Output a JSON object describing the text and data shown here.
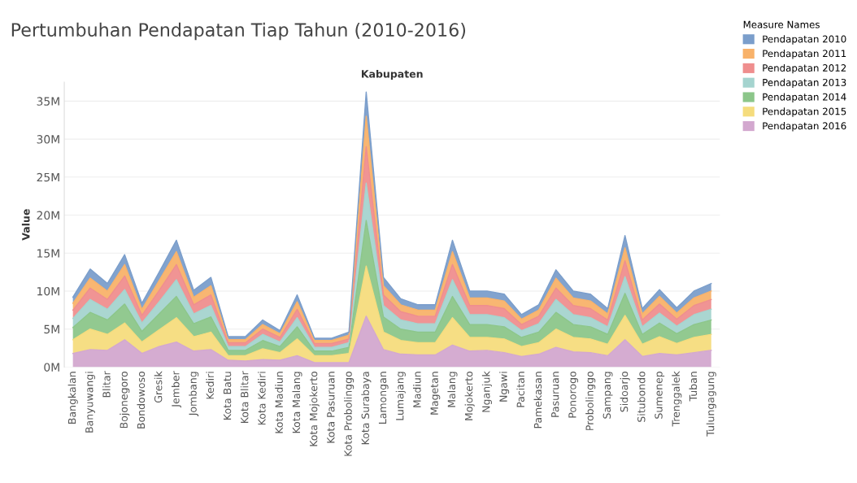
{
  "chart_data": {
    "type": "area",
    "stacked": true,
    "title": "Pertumbuhan Pendapatan Tiap Tahun (2010-2016)",
    "xlabel": "Kabupaten",
    "ylabel": "Value",
    "legend_title": "Measure Names",
    "categories": [
      "Bangkalan",
      "Banyuwangi",
      "Blitar",
      "Bojonegoro",
      "Bondowoso",
      "Gresik",
      "Jember",
      "Jombang",
      "Kediri",
      "Kota Batu",
      "Kota Blitar",
      "Kota Kediri",
      "Kota Madiun",
      "Kota Malang",
      "Kota Mojokerto",
      "Kota Pasuruan",
      "Kota Probolinggo",
      "Kota Surabaya",
      "Lamongan",
      "Lumajang",
      "Madiun",
      "Magetan",
      "Malang",
      "Mojokerto",
      "Nganjuk",
      "Ngawi",
      "Pacitan",
      "Pamekasan",
      "Pasuruan",
      "Ponorogo",
      "Probolinggo",
      "Sampang",
      "Sidoarjo",
      "Situbondo",
      "Sumenep",
      "Trenggalek",
      "Tuban",
      "Tulungagung"
    ],
    "series": [
      {
        "name": "Pendapatan 2016",
        "color": "#d3a8cf",
        "values": [
          1.8,
          2.3,
          2.2,
          3.6,
          1.8,
          2.7,
          3.3,
          2.1,
          2.3,
          0.9,
          0.8,
          1.0,
          0.9,
          1.5,
          0.6,
          0.6,
          0.6,
          6.7,
          2.3,
          1.7,
          1.6,
          1.6,
          2.9,
          2.1,
          2.2,
          1.9,
          1.4,
          1.7,
          2.6,
          2.0,
          1.9,
          1.5,
          3.6,
          1.4,
          1.8,
          1.6,
          1.9,
          2.2
        ]
      },
      {
        "name": "Pendapatan 2015",
        "color": "#f5dc7d",
        "values": [
          1.8,
          2.7,
          2.1,
          2.2,
          1.5,
          2.2,
          3.2,
          1.9,
          2.3,
          0.6,
          0.7,
          1.4,
          1.0,
          2.2,
          0.9,
          0.9,
          1.2,
          6.6,
          2.3,
          1.8,
          1.6,
          1.6,
          3.6,
          1.8,
          1.7,
          1.8,
          1.3,
          1.5,
          2.4,
          1.9,
          1.8,
          1.5,
          3.2,
          1.6,
          2.2,
          1.5,
          2.0,
          2.1
        ]
      },
      {
        "name": "Pendapatan 2014",
        "color": "#8cc68a",
        "values": [
          1.6,
          2.2,
          1.9,
          2.5,
          1.4,
          2.1,
          2.8,
          1.7,
          2.0,
          0.7,
          0.7,
          1.1,
          0.8,
          1.6,
          0.6,
          0.6,
          0.8,
          6.0,
          2.0,
          1.5,
          1.4,
          1.4,
          2.8,
          1.7,
          1.7,
          1.6,
          1.2,
          1.4,
          2.2,
          1.7,
          1.6,
          1.3,
          2.9,
          1.3,
          1.8,
          1.3,
          1.7,
          1.9
        ]
      },
      {
        "name": "Pendapatan 2013",
        "color": "#a5d4cf",
        "values": [
          1.2,
          1.7,
          1.4,
          1.9,
          1.1,
          1.6,
          2.2,
          1.3,
          1.5,
          0.5,
          0.5,
          0.8,
          0.6,
          1.2,
          0.5,
          0.5,
          0.6,
          4.9,
          1.5,
          1.2,
          1.1,
          1.1,
          2.2,
          1.3,
          1.3,
          1.2,
          0.9,
          1.1,
          1.7,
          1.3,
          1.2,
          1.0,
          2.2,
          1.0,
          1.3,
          1.0,
          1.3,
          1.4
        ]
      },
      {
        "name": "Pendapatan 2012",
        "color": "#ef8e8e",
        "values": [
          1.1,
          1.5,
          1.3,
          1.8,
          1.0,
          1.5,
          2.0,
          1.2,
          1.4,
          0.5,
          0.5,
          0.7,
          0.6,
          1.1,
          0.5,
          0.5,
          0.5,
          4.8,
          1.4,
          1.1,
          1.0,
          1.0,
          2.0,
          1.2,
          1.2,
          1.2,
          0.8,
          1.0,
          1.5,
          1.2,
          1.2,
          0.9,
          2.1,
          0.9,
          1.2,
          0.9,
          1.2,
          1.3
        ]
      },
      {
        "name": "Pendapatan 2011",
        "color": "#f8b26a",
        "values": [
          0.9,
          1.3,
          1.1,
          1.5,
          0.8,
          1.3,
          1.7,
          1.0,
          1.2,
          0.4,
          0.4,
          0.6,
          0.5,
          1.0,
          0.4,
          0.4,
          0.5,
          4.0,
          1.2,
          0.9,
          0.8,
          0.8,
          1.7,
          1.0,
          1.0,
          1.0,
          0.7,
          0.8,
          1.3,
          1.0,
          1.0,
          0.8,
          1.7,
          0.8,
          1.0,
          0.8,
          1.0,
          1.1
        ]
      },
      {
        "name": "Pendapatan 2010",
        "color": "#7b9ecb",
        "values": [
          0.8,
          1.2,
          1.0,
          1.3,
          0.8,
          1.1,
          1.5,
          0.9,
          1.1,
          0.4,
          0.4,
          0.6,
          0.4,
          0.9,
          0.3,
          0.3,
          0.4,
          3.2,
          1.1,
          0.8,
          0.7,
          0.7,
          1.5,
          0.9,
          0.9,
          0.9,
          0.6,
          0.7,
          1.1,
          0.9,
          0.9,
          0.7,
          1.6,
          0.7,
          0.9,
          0.7,
          0.9,
          1.0
        ]
      }
    ],
    "ylim": [
      0,
      37.5
    ],
    "yticks": [
      {
        "value": 0,
        "label": "0M"
      },
      {
        "value": 5,
        "label": "5M"
      },
      {
        "value": 10,
        "label": "10M"
      },
      {
        "value": 15,
        "label": "15M"
      },
      {
        "value": 20,
        "label": "20M"
      },
      {
        "value": 25,
        "label": "25M"
      },
      {
        "value": 30,
        "label": "30M"
      },
      {
        "value": 35,
        "label": "35M"
      }
    ],
    "grid": "y",
    "legend": "right"
  }
}
